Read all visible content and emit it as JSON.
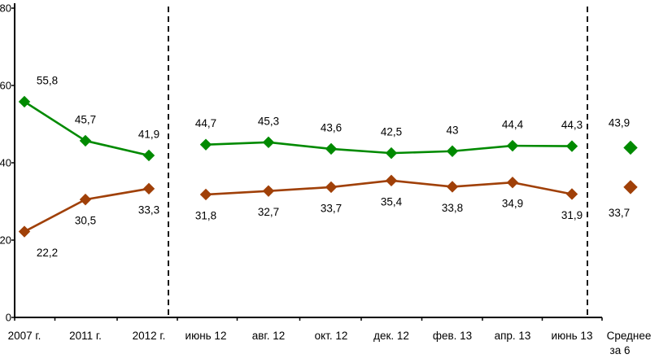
{
  "chart_data": {
    "type": "line",
    "title": "",
    "xlabel": "",
    "ylabel": "",
    "ylim": [
      0,
      80
    ],
    "yticks": [
      0,
      20,
      40,
      60,
      80
    ],
    "ytick_labels": [
      "0",
      "20",
      "40",
      "60",
      "80"
    ],
    "grid": false,
    "legend": "none",
    "categories": [
      "2007 г.",
      "2011 г.",
      "2012 г.",
      "июнь 12",
      "авг. 12",
      "окт. 12",
      "дек. 12",
      "фев. 13",
      "апр. 13",
      "июнь 13"
    ],
    "summary_category_lines": [
      "Среднее",
      "за 6"
    ],
    "segments": [
      [
        0,
        2
      ],
      [
        3,
        9
      ]
    ],
    "group_separators_after_index": [
      2,
      9
    ],
    "series": [
      {
        "name": "series-green",
        "color": "#008A00",
        "marker": "diamond",
        "label_side": "above",
        "values": [
          55.8,
          45.7,
          41.9,
          44.7,
          45.3,
          43.6,
          42.5,
          43,
          44.4,
          44.3
        ],
        "labels": [
          "55,8",
          "45,7",
          "41,9",
          "44,7",
          "45,3",
          "43,6",
          "42,5",
          "43",
          "44,4",
          "44,3"
        ],
        "summary_value": 43.9,
        "summary_label": "43,9"
      },
      {
        "name": "series-brown",
        "color": "#A04008",
        "marker": "diamond",
        "label_side": "below",
        "values": [
          22.2,
          30.5,
          33.3,
          31.8,
          32.7,
          33.7,
          35.4,
          33.8,
          34.9,
          31.9
        ],
        "labels": [
          "22,2",
          "30,5",
          "33,3",
          "31,8",
          "32,7",
          "33,7",
          "35,4",
          "33,8",
          "34,9",
          "31,9"
        ],
        "summary_value": 33.7,
        "summary_label": "33,7"
      }
    ]
  }
}
